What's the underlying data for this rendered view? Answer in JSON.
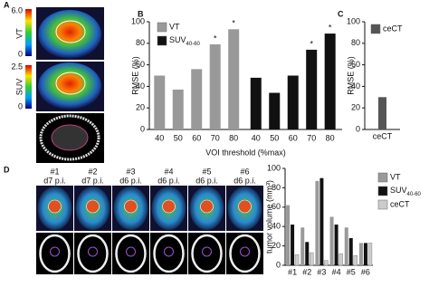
{
  "panel_labels": [
    "A",
    "B",
    "C",
    "D"
  ],
  "panel_a": {
    "scales": [
      {
        "max": "6.0",
        "min": "0",
        "label": "VT"
      },
      {
        "max": "2.5",
        "min": "0",
        "label": "SUV"
      }
    ]
  },
  "panel_d": {
    "scans": [
      {
        "id": "#1",
        "day": "d7 p.i."
      },
      {
        "id": "#2",
        "day": "d7 p.i."
      },
      {
        "id": "#3",
        "day": "d6 p.i."
      },
      {
        "id": "#4",
        "day": "d6 p.i."
      },
      {
        "id": "#5",
        "day": "d6 p.i."
      },
      {
        "id": "#6",
        "day": "d6 p.i."
      }
    ]
  },
  "chart_data": [
    {
      "type": "bar",
      "grouping": "series",
      "y_label": "RMSE (%)",
      "x_label": "VOI threshold (%max)",
      "categories": [
        "40",
        "50",
        "60",
        "70",
        "80"
      ],
      "series": [
        {
          "name": "VT",
          "color": "#999999",
          "values": [
            50,
            37,
            56,
            79,
            93
          ]
        },
        {
          "name": "SUV40-60",
          "color": "#111111",
          "values": [
            48,
            34,
            50,
            74,
            89
          ]
        }
      ],
      "annotations": [
        {
          "text": "*",
          "series": "VT",
          "category": "70"
        },
        {
          "text": "*",
          "series": "VT",
          "category": "80"
        },
        {
          "text": "*",
          "series": "SUV40-60",
          "category": "70"
        },
        {
          "text": "*",
          "series": "SUV40-60",
          "category": "80"
        }
      ],
      "ylim": [
        0,
        100
      ],
      "yticks": [
        0,
        20,
        40,
        60,
        80,
        100
      ],
      "legend": "upper left"
    },
    {
      "type": "bar",
      "grouping": "category",
      "y_label": "RMSE (%)",
      "categories": [
        "ceCT"
      ],
      "series": [
        {
          "name": "ceCT",
          "color": "#555555",
          "values": [
            30
          ]
        }
      ],
      "ylim": [
        0,
        100
      ],
      "yticks": [
        0,
        20,
        40,
        60,
        80,
        100
      ],
      "legend": "upper left"
    },
    {
      "type": "bar",
      "grouping": "category",
      "y_label": "tumor volume (mm³)",
      "categories": [
        "#1",
        "#2",
        "#3",
        "#4",
        "#5",
        "#6"
      ],
      "series": [
        {
          "name": "VT",
          "color": "#999999",
          "values": [
            62,
            39,
            87,
            50,
            39,
            23
          ]
        },
        {
          "name": "SUV40-60",
          "color": "#111111",
          "values": [
            42,
            24,
            90,
            42,
            28,
            23
          ]
        },
        {
          "name": "ceCT",
          "color": "#cccccc",
          "values": [
            11,
            13,
            5,
            12,
            10,
            23
          ]
        }
      ],
      "ylim": [
        0,
        100
      ],
      "yticks": [
        0,
        20,
        40,
        60,
        80,
        100
      ],
      "legend": "outside right"
    }
  ]
}
